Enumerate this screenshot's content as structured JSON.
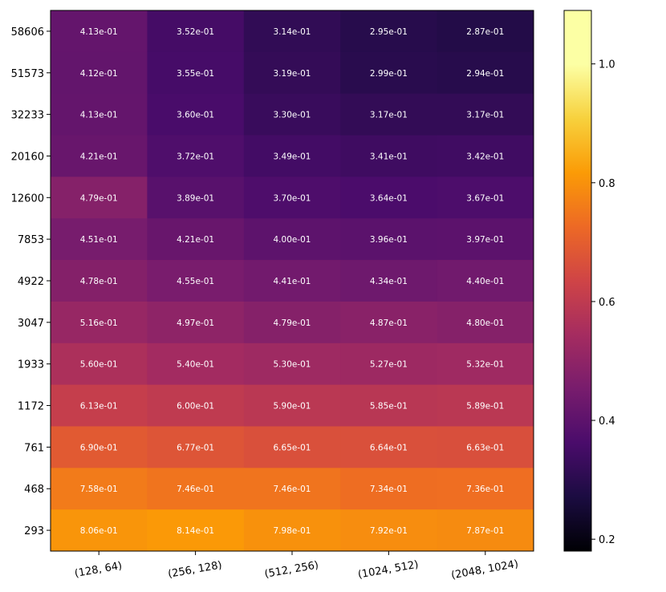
{
  "chart_data": {
    "type": "heatmap",
    "title": "",
    "xlabel": "",
    "ylabel": "",
    "x_categories": [
      "(128, 64)",
      "(256, 128)",
      "(512, 256)",
      "(1024, 512)",
      "(2048, 1024)"
    ],
    "y_categories": [
      "58606",
      "51573",
      "32233",
      "20160",
      "12600",
      "7853",
      "4922",
      "3047",
      "1933",
      "1172",
      "761",
      "468",
      "293"
    ],
    "values": [
      [
        0.413,
        0.352,
        0.314,
        0.295,
        0.287
      ],
      [
        0.412,
        0.355,
        0.319,
        0.299,
        0.294
      ],
      [
        0.413,
        0.36,
        0.33,
        0.317,
        0.317
      ],
      [
        0.421,
        0.372,
        0.349,
        0.341,
        0.342
      ],
      [
        0.479,
        0.389,
        0.37,
        0.364,
        0.367
      ],
      [
        0.451,
        0.421,
        0.4,
        0.396,
        0.397
      ],
      [
        0.478,
        0.455,
        0.441,
        0.434,
        0.44
      ],
      [
        0.516,
        0.497,
        0.479,
        0.487,
        0.48
      ],
      [
        0.56,
        0.54,
        0.53,
        0.527,
        0.532
      ],
      [
        0.613,
        0.6,
        0.59,
        0.585,
        0.589
      ],
      [
        0.69,
        0.677,
        0.665,
        0.664,
        0.663
      ],
      [
        0.758,
        0.746,
        0.746,
        0.734,
        0.736
      ],
      [
        0.806,
        0.814,
        0.798,
        0.792,
        0.787
      ]
    ],
    "labels": [
      [
        "4.13e-01",
        "3.52e-01",
        "3.14e-01",
        "2.95e-01",
        "2.87e-01"
      ],
      [
        "4.12e-01",
        "3.55e-01",
        "3.19e-01",
        "2.99e-01",
        "2.94e-01"
      ],
      [
        "4.13e-01",
        "3.60e-01",
        "3.30e-01",
        "3.17e-01",
        "3.17e-01"
      ],
      [
        "4.21e-01",
        "3.72e-01",
        "3.49e-01",
        "3.41e-01",
        "3.42e-01"
      ],
      [
        "4.79e-01",
        "3.89e-01",
        "3.70e-01",
        "3.64e-01",
        "3.67e-01"
      ],
      [
        "4.51e-01",
        "4.21e-01",
        "4.00e-01",
        "3.96e-01",
        "3.97e-01"
      ],
      [
        "4.78e-01",
        "4.55e-01",
        "4.41e-01",
        "4.34e-01",
        "4.40e-01"
      ],
      [
        "5.16e-01",
        "4.97e-01",
        "4.79e-01",
        "4.87e-01",
        "4.80e-01"
      ],
      [
        "5.60e-01",
        "5.40e-01",
        "5.30e-01",
        "5.27e-01",
        "5.32e-01"
      ],
      [
        "6.13e-01",
        "6.00e-01",
        "5.90e-01",
        "5.85e-01",
        "5.89e-01"
      ],
      [
        "6.90e-01",
        "6.77e-01",
        "6.65e-01",
        "6.64e-01",
        "6.63e-01"
      ],
      [
        "7.58e-01",
        "7.46e-01",
        "7.46e-01",
        "7.34e-01",
        "7.36e-01"
      ],
      [
        "8.06e-01",
        "8.14e-01",
        "7.98e-01",
        "7.92e-01",
        "7.87e-01"
      ]
    ],
    "colormap": "inferno",
    "colorbar": {
      "range": [
        0.18,
        1.09
      ],
      "ticks": [
        0.2,
        0.4,
        0.6,
        0.8,
        1.0
      ],
      "tick_labels": [
        "0.2",
        "0.4",
        "0.6",
        "0.8",
        "1.0"
      ]
    },
    "grid": false,
    "legend": "none"
  }
}
